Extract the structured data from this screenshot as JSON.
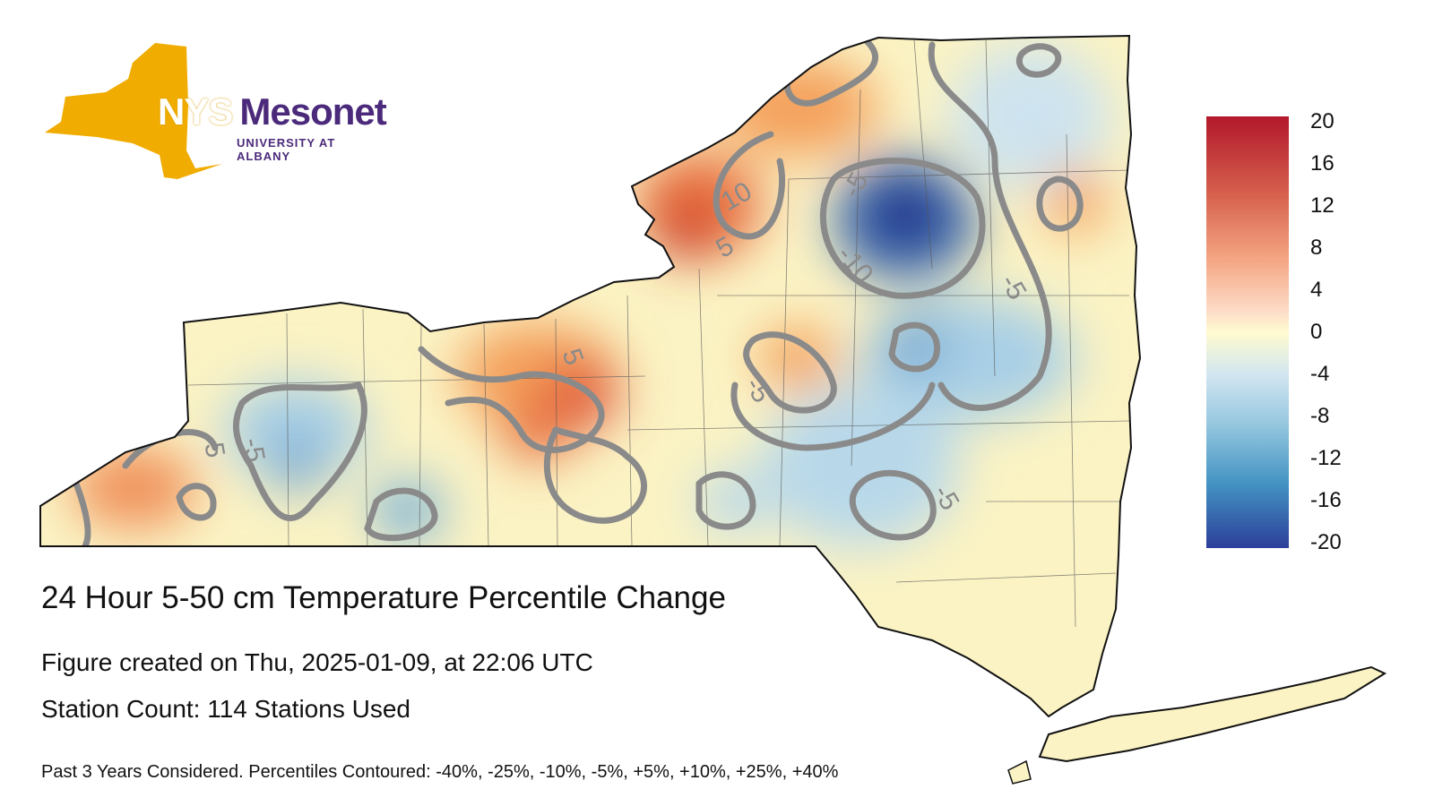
{
  "logo": {
    "nys": "NYS",
    "mesonet": "Mesonet",
    "university": "UNIVERSITY AT ALBANY",
    "brand_gold": "#f0ac00",
    "brand_purple": "#4b2a7b"
  },
  "title": "24 Hour 5-50 cm Temperature Percentile Change",
  "created": "Figure created on Thu, 2025-01-09, at 22:06 UTC",
  "stations": "Station Count: 114 Stations Used",
  "footnote": "Past 3 Years Considered. Percentiles Contoured: -40%, -25%, -10%, -5%, +5%, +10%, +25%, +40%",
  "colorbar": {
    "labels": [
      "20",
      "16",
      "12",
      "8",
      "4",
      "0",
      "-4",
      "-8",
      "-12",
      "-16",
      "-20"
    ],
    "max": 20,
    "min": -20,
    "colors": [
      "#b2182b",
      "#d6604d",
      "#f4a582",
      "#fddbc7",
      "#fffbd0",
      "#d1e5f0",
      "#92c5de",
      "#4393c3",
      "#2c3f99"
    ]
  },
  "contour_labels": [
    {
      "text": "10"
    },
    {
      "text": "5"
    },
    {
      "text": "-5"
    },
    {
      "text": "-10"
    },
    {
      "text": "-5"
    },
    {
      "text": "5"
    },
    {
      "text": "-5"
    },
    {
      "text": "5"
    },
    {
      "text": "-5"
    },
    {
      "text": "-5"
    }
  ]
}
